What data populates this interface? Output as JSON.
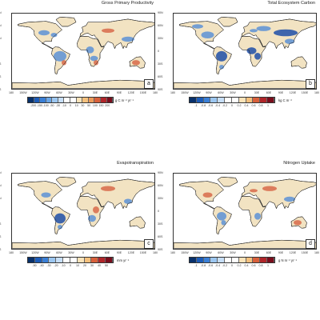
{
  "map": {
    "panels": [
      {
        "letter": "a",
        "title": "Gross Primary Productivity",
        "unit": "g C m⁻² yr⁻¹",
        "tick_labels": [
          "-200",
          "-150",
          "-100",
          "-50",
          "-30",
          "-10",
          "0",
          "10",
          "30",
          "50",
          "100",
          "150",
          "200"
        ]
      },
      {
        "letter": "b",
        "title": "Total Ecosystem Carbon",
        "unit": "kg C m⁻²",
        "tick_labels": [
          "-1",
          "-0.8",
          "-0.6",
          "-0.4",
          "-0.2",
          "0",
          "0.2",
          "0.4",
          "0.6",
          "0.8",
          "1"
        ]
      },
      {
        "letter": "c",
        "title": "Evapotranspiration",
        "unit": "mm yr⁻¹",
        "tick_labels": [
          "-50",
          "-40",
          "-30",
          "-20",
          "-10",
          "0",
          "10",
          "20",
          "30",
          "40",
          "50"
        ]
      },
      {
        "letter": "d",
        "title": "Nitrogen Uptake",
        "unit": "g N m⁻² yr⁻¹",
        "tick_labels": [
          "-1",
          "-0.8",
          "-0.6",
          "-0.4",
          "-0.2",
          "0",
          "0.2",
          "0.4",
          "0.6",
          "0.8",
          "1"
        ]
      }
    ],
    "lat_labels": [
      "90N",
      "60N",
      "30N",
      "0",
      "30S",
      "60S",
      "90S"
    ],
    "lon_labels": [
      "180",
      "150W",
      "120W",
      "90W",
      "60W",
      "30W",
      "0",
      "30E",
      "60E",
      "90E",
      "120E",
      "150E",
      "180"
    ],
    "colors": {
      "palette": [
        "#08306b",
        "#1c5cb8",
        "#3a7fd6",
        "#6aa5e6",
        "#9cc6f0",
        "#c6def7",
        "#ffffff",
        "#ffffff",
        "#fbe3b8",
        "#f4c07d",
        "#ec9a5a",
        "#d8603b",
        "#b0262a",
        "#7a0d1c"
      ],
      "land": "#f2e3c2",
      "land_blue": "#5d92d6",
      "land_dark_blue": "#1f4fa8",
      "land_red": "#d86a4a",
      "coast": "#222222"
    }
  }
}
